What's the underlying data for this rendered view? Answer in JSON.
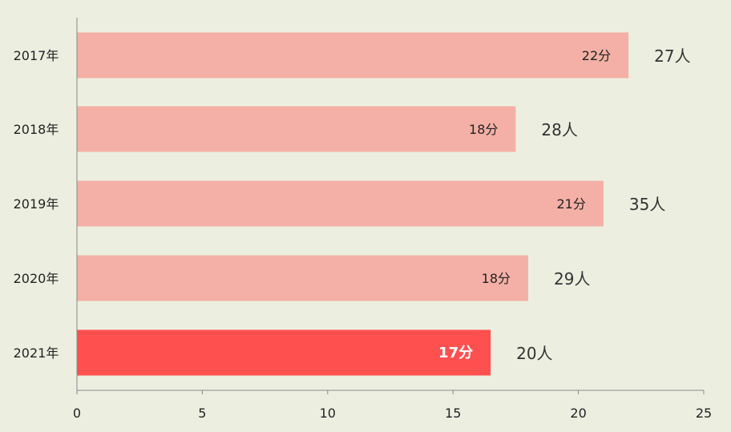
{
  "chart_data": {
    "type": "bar",
    "orientation": "horizontal",
    "categories": [
      "2017年",
      "2018年",
      "2019年",
      "2020年",
      "2021年"
    ],
    "values": [
      22,
      17.5,
      21,
      18,
      16.5
    ],
    "bar_labels": [
      "22分",
      "18分",
      "21分",
      "18分",
      "17分"
    ],
    "count_labels": [
      "27人",
      "28人",
      "35人",
      "29人",
      "20人"
    ],
    "highlight_index": 4,
    "xlim": [
      0,
      25
    ],
    "xticks": [
      0,
      5,
      10,
      15,
      20,
      25
    ],
    "grid": false,
    "colors": {
      "bar": "#f4b0a6",
      "highlight": "#ff5050",
      "axis": "#888888"
    }
  }
}
